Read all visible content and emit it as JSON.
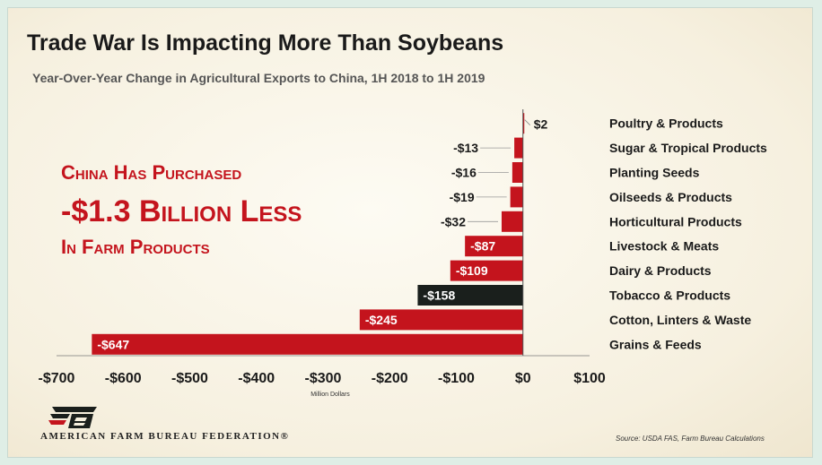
{
  "title": "Trade War Is Impacting More Than Soybeans",
  "subtitle": "Year-Over-Year Change in Agricultural Exports to China, 1H 2018 to 1H 2019",
  "callout": {
    "line1": "China Has Purchased",
    "line2": "-$1.3 Billion Less",
    "line3": "In Farm Products",
    "color": "#c4141d"
  },
  "branding": {
    "logo_icon": "farm-bureau-fb-logo",
    "org_name": "AMERICAN FARM BUREAU FEDERATION®"
  },
  "source": "Source: USDA FAS, Farm Bureau Calculations",
  "chart_data": {
    "type": "bar",
    "orientation": "horizontal",
    "categories": [
      "Poultry & Products",
      "Sugar & Tropical Products",
      "Planting Seeds",
      "Oilseeds & Products",
      "Horticultural Products",
      "Livestock & Meats",
      "Dairy & Products",
      "Tobacco & Products",
      "Cotton, Linters & Waste",
      "Grains & Feeds"
    ],
    "values": [
      2,
      -13,
      -16,
      -19,
      -32,
      -87,
      -109,
      -158,
      -245,
      -647
    ],
    "data_labels": [
      "$2",
      "-$13",
      "-$16",
      "-$19",
      "-$32",
      "-$87",
      "-$109",
      "-$158",
      "-$245",
      "-$647"
    ],
    "bar_colors": [
      "#c4141d",
      "#c4141d",
      "#c4141d",
      "#c4141d",
      "#c4141d",
      "#c4141d",
      "#c4141d",
      "#1a1f1c",
      "#c4141d",
      "#c4141d"
    ],
    "xlim": [
      -700,
      100
    ],
    "xticks": [
      -700,
      -600,
      -500,
      -400,
      -300,
      -200,
      -100,
      0,
      100
    ],
    "xtick_labels": [
      "-$700",
      "-$600",
      "-$500",
      "-$400",
      "-$300",
      "-$200",
      "-$100",
      "$0",
      "$100"
    ],
    "xlabel": "Million Dollars",
    "ylabel": "",
    "grid": false,
    "legend": "none"
  }
}
